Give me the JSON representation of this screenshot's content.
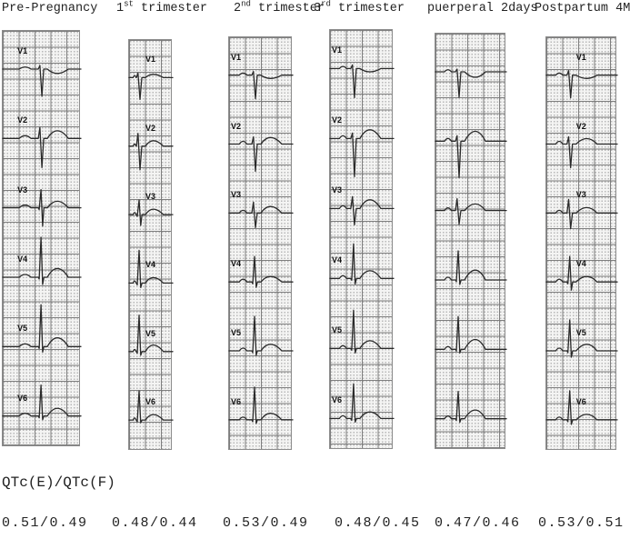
{
  "figure": {
    "qtc_label": "QTc(E)/QTc(F)",
    "columns": [
      {
        "title_pre": "Pre-Pregnancy",
        "title_sup": "",
        "title_post": "",
        "qtc": "0.51/0.49",
        "leads": [
          {
            "label": "V1",
            "r": 4,
            "s": 30,
            "t": -4,
            "p": 1.5
          },
          {
            "label": "V2",
            "r": 12,
            "s": 32,
            "t": 7,
            "p": 2
          },
          {
            "label": "V3",
            "r": 20,
            "s": 20,
            "t": 6,
            "p": 2
          },
          {
            "label": "V4",
            "r": 44,
            "s": 8,
            "t": 8,
            "p": 2
          },
          {
            "label": "V5",
            "r": 46,
            "s": 6,
            "t": 8,
            "p": 2
          },
          {
            "label": "V6",
            "r": 34,
            "s": 4,
            "t": 7,
            "p": 2
          }
        ]
      },
      {
        "title_pre": "1",
        "title_sup": "st",
        "title_post": " trimester",
        "qtc": "0.48/0.44",
        "leads": [
          {
            "label": "V1",
            "r": 5,
            "s": 24,
            "t": 3,
            "p": 1.5
          },
          {
            "label": "V2",
            "r": 14,
            "s": 26,
            "t": 5,
            "p": 1.5
          },
          {
            "label": "V3",
            "r": 16,
            "s": 12,
            "t": 5,
            "p": 1.5
          },
          {
            "label": "V4",
            "r": 36,
            "s": 5,
            "t": 5,
            "p": 1.5
          },
          {
            "label": "V5",
            "r": 40,
            "s": 4,
            "t": 6,
            "p": 1.5
          },
          {
            "label": "V6",
            "r": 32,
            "s": 3,
            "t": 5,
            "p": 1.5
          }
        ]
      },
      {
        "title_pre": "2",
        "title_sup": "nd",
        "title_post": " trimester",
        "qtc": "0.53/0.49",
        "leads": [
          {
            "label": "V1",
            "r": 4,
            "s": 26,
            "t": -3,
            "p": 1.5
          },
          {
            "label": "V2",
            "r": 8,
            "s": 30,
            "t": 6,
            "p": 2
          },
          {
            "label": "V3",
            "r": 12,
            "s": 16,
            "t": 6,
            "p": 2
          },
          {
            "label": "V4",
            "r": 28,
            "s": 6,
            "t": 5,
            "p": 2
          },
          {
            "label": "V5",
            "r": 38,
            "s": 5,
            "t": 6,
            "p": 2
          },
          {
            "label": "V6",
            "r": 36,
            "s": 4,
            "t": 6,
            "p": 2
          }
        ]
      },
      {
        "title_pre": "3",
        "title_sup": "rd",
        "title_post": " trimester",
        "qtc": "0.48/0.45",
        "leads": [
          {
            "label": "V1",
            "r": 4,
            "s": 32,
            "t": -3,
            "p": 1.5
          },
          {
            "label": "V2",
            "r": 6,
            "s": 42,
            "t": 8,
            "p": 2
          },
          {
            "label": "V3",
            "r": 13,
            "s": 18,
            "t": 8,
            "p": 2
          },
          {
            "label": "V4",
            "r": 38,
            "s": 6,
            "t": 7,
            "p": 2
          },
          {
            "label": "V5",
            "r": 42,
            "s": 5,
            "t": 7,
            "p": 2
          },
          {
            "label": "V6",
            "r": 38,
            "s": 4,
            "t": 6,
            "p": 2
          }
        ]
      },
      {
        "title_pre": "puerperal 2days",
        "title_sup": "",
        "title_post": "",
        "qtc": "0.47/0.46",
        "leads": [
          {
            "label": "",
            "r": 3,
            "s": 28,
            "t": -5,
            "p": 1.5
          },
          {
            "label": "",
            "r": 6,
            "s": 40,
            "t": 9,
            "p": 2
          },
          {
            "label": "",
            "r": 13,
            "s": 15,
            "t": 6,
            "p": 2
          },
          {
            "label": "",
            "r": 32,
            "s": 5,
            "t": 9,
            "p": 2
          },
          {
            "label": "",
            "r": 36,
            "s": 4,
            "t": 9,
            "p": 2
          },
          {
            "label": "",
            "r": 30,
            "s": 4,
            "t": 8,
            "p": 2
          }
        ]
      },
      {
        "title_pre": "Postpartum 4M",
        "title_sup": "",
        "title_post": "",
        "qtc": "0.53/0.51",
        "leads": [
          {
            "label": "V1",
            "r": 5,
            "s": 25,
            "t": -3,
            "p": 1.5
          },
          {
            "label": "V2",
            "r": 8,
            "s": 26,
            "t": 5,
            "p": 2
          },
          {
            "label": "V3",
            "r": 15,
            "s": 17,
            "t": 5,
            "p": 2
          },
          {
            "label": "V4",
            "r": 28,
            "s": 9,
            "t": 5,
            "p": 2
          },
          {
            "label": "V5",
            "r": 34,
            "s": 7,
            "t": 6,
            "p": 2
          },
          {
            "label": "V6",
            "r": 32,
            "s": 5,
            "t": 5,
            "p": 2
          }
        ]
      }
    ]
  }
}
